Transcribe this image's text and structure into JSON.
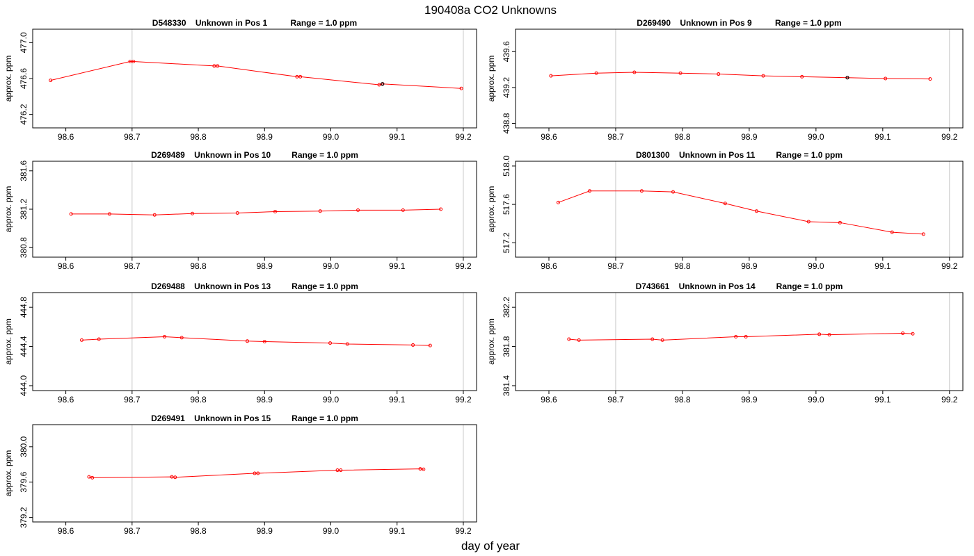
{
  "figure": {
    "title": "190408a  CO2 Unknowns",
    "xlabel": "day of year"
  },
  "chart_data": [
    {
      "type": "line",
      "title": "D548330    Unknown in Pos 1          Range = 1.0 ppm",
      "xlabel": "",
      "ylabel": "approx. ppm",
      "xlim": [
        98.55,
        99.22
      ],
      "ylim": [
        476.05,
        477.15
      ],
      "xticks": [
        "98.6",
        "98.7",
        "98.8",
        "98.9",
        "99.0",
        "99.1",
        "99.2"
      ],
      "yticks": [
        "476.2",
        "476.6",
        "477.0"
      ],
      "vlines": [
        98.7,
        99.2
      ],
      "line_color": "#ff0000",
      "highlight_color": "#000000",
      "x": [
        98.577,
        98.697,
        98.702,
        98.824,
        98.829,
        98.949,
        98.954,
        99.073,
        99.078,
        99.197
      ],
      "y": [
        476.58,
        476.79,
        476.79,
        476.74,
        476.74,
        476.62,
        476.62,
        476.53,
        476.54,
        476.49
      ],
      "highlight_index": 8
    },
    {
      "type": "line",
      "title": "D269490    Unknown in Pos 9          Range = 1.0 ppm",
      "xlabel": "",
      "ylabel": "approx. ppm",
      "xlim": [
        98.55,
        99.22
      ],
      "ylim": [
        438.75,
        439.85
      ],
      "xticks": [
        "98.6",
        "98.7",
        "98.8",
        "98.9",
        "99.0",
        "99.1",
        "99.2"
      ],
      "yticks": [
        "438.8",
        "439.2",
        "439.6"
      ],
      "vlines": [
        98.7,
        99.2
      ],
      "line_color": "#ff0000",
      "highlight_color": "#000000",
      "x": [
        98.603,
        98.671,
        98.728,
        98.797,
        98.854,
        98.921,
        98.979,
        99.047,
        99.104,
        99.171
      ],
      "y": [
        439.33,
        439.36,
        439.37,
        439.36,
        439.35,
        439.33,
        439.32,
        439.31,
        439.3,
        439.295
      ],
      "highlight_index": 7
    },
    {
      "type": "line",
      "title": "D269489    Unknown in Pos 10         Range = 1.0 ppm",
      "xlabel": "",
      "ylabel": "approx. ppm",
      "xlim": [
        98.55,
        99.22
      ],
      "ylim": [
        380.7,
        381.7
      ],
      "xticks": [
        "98.6",
        "98.7",
        "98.8",
        "98.9",
        "99.0",
        "99.1",
        "99.2"
      ],
      "yticks": [
        "380.8",
        "381.2",
        "381.6"
      ],
      "vlines": [
        98.7,
        99.2
      ],
      "line_color": "#ff0000",
      "x": [
        98.608,
        98.666,
        98.734,
        98.791,
        98.859,
        98.916,
        98.984,
        99.041,
        99.109,
        99.166
      ],
      "y": [
        381.15,
        381.15,
        381.14,
        381.155,
        381.16,
        381.175,
        381.18,
        381.19,
        381.19,
        381.2
      ]
    },
    {
      "type": "line",
      "title": "D801300    Unknown in Pos 11         Range = 1.0 ppm",
      "xlabel": "",
      "ylabel": "approx. ppm",
      "xlim": [
        98.55,
        99.22
      ],
      "ylim": [
        517.05,
        518.05
      ],
      "xticks": [
        "98.6",
        "98.7",
        "98.8",
        "98.9",
        "99.0",
        "99.1",
        "99.2"
      ],
      "yticks": [
        "517.2",
        "517.6",
        "518.0"
      ],
      "vlines": [
        98.7,
        99.2
      ],
      "line_color": "#ff0000",
      "x": [
        98.614,
        98.661,
        98.739,
        98.786,
        98.864,
        98.911,
        98.989,
        99.036,
        99.114,
        99.161
      ],
      "y": [
        517.62,
        517.74,
        517.74,
        517.73,
        517.61,
        517.53,
        517.42,
        517.41,
        517.31,
        517.29
      ]
    },
    {
      "type": "line",
      "title": "D269488    Unknown in Pos 13         Range = 1.0 ppm",
      "xlabel": "",
      "ylabel": "approx. ppm",
      "xlim": [
        98.55,
        99.22
      ],
      "ylim": [
        443.95,
        444.95
      ],
      "xticks": [
        "98.6",
        "98.7",
        "98.8",
        "98.9",
        "99.0",
        "99.1",
        "99.2"
      ],
      "yticks": [
        "444.0",
        "444.4",
        "444.8"
      ],
      "vlines": [
        98.7,
        99.2
      ],
      "line_color": "#ff0000",
      "x": [
        98.624,
        98.65,
        98.749,
        98.775,
        98.874,
        98.9,
        98.999,
        99.025,
        99.124,
        99.15
      ],
      "y": [
        444.465,
        444.475,
        444.5,
        444.49,
        444.455,
        444.45,
        444.435,
        444.425,
        444.415,
        444.41
      ]
    },
    {
      "type": "line",
      "title": "D743661    Unknown in Pos 14         Range = 1.0 ppm",
      "xlabel": "",
      "ylabel": "approx. ppm",
      "xlim": [
        98.55,
        99.22
      ],
      "ylim": [
        381.35,
        382.35
      ],
      "xticks": [
        "98.6",
        "98.7",
        "98.8",
        "98.9",
        "99.0",
        "99.1",
        "99.2"
      ],
      "yticks": [
        "381.4",
        "381.8",
        "382.2"
      ],
      "vlines": [
        98.7,
        99.2
      ],
      "line_color": "#ff0000",
      "x": [
        98.63,
        98.645,
        98.755,
        98.77,
        98.88,
        98.895,
        99.005,
        99.02,
        99.13,
        99.145
      ],
      "y": [
        381.875,
        381.865,
        381.875,
        381.865,
        381.9,
        381.9,
        381.925,
        381.92,
        381.935,
        381.93
      ]
    },
    {
      "type": "line",
      "title": "D269491    Unknown in Pos 15         Range = 1.0 ppm",
      "xlabel": "",
      "ylabel": "approx. ppm",
      "xlim": [
        98.55,
        99.22
      ],
      "ylim": [
        379.15,
        380.25
      ],
      "xticks": [
        "98.6",
        "98.7",
        "98.8",
        "98.9",
        "99.0",
        "99.1",
        "99.2"
      ],
      "yticks": [
        "379.2",
        "379.6",
        "380.0"
      ],
      "vlines": [
        98.7,
        99.2
      ],
      "line_color": "#ff0000",
      "x": [
        98.635,
        98.64,
        98.76,
        98.765,
        98.885,
        98.89,
        99.01,
        99.015,
        99.135,
        99.14
      ],
      "y": [
        379.66,
        379.65,
        379.66,
        379.655,
        379.7,
        379.7,
        379.735,
        379.735,
        379.75,
        379.745
      ]
    }
  ]
}
